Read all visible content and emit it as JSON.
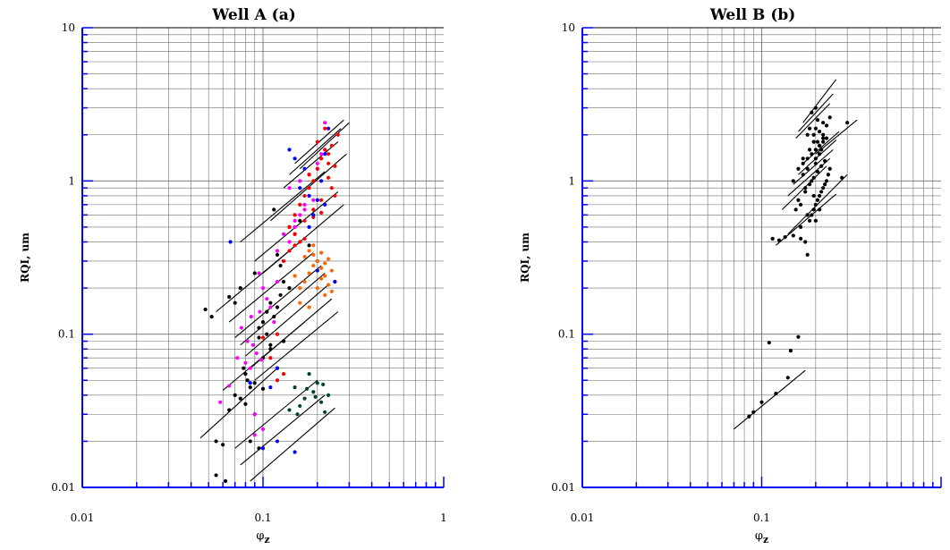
{
  "chart_data": [
    {
      "type": "scatter",
      "title": "Well A (a)",
      "xlabel": "φz",
      "ylabel": "RQI, um",
      "x_scale": "log",
      "y_scale": "log",
      "xlim": [
        0.01,
        1
      ],
      "ylim": [
        0.01,
        10
      ],
      "x_tick_labels": [
        "0.01",
        "0.1",
        "1"
      ],
      "y_tick_labels": [
        "0.01",
        "0.1",
        "1",
        "10"
      ],
      "grid": true,
      "colors": {
        "axis": "#0000ff",
        "grid": "#6e6e6e",
        "lines": "#000000"
      },
      "series": [
        {
          "color": "#000000",
          "x": [
            0.048,
            0.052,
            0.055,
            0.06,
            0.065,
            0.07,
            0.075,
            0.078,
            0.08,
            0.082,
            0.085,
            0.09,
            0.095,
            0.1,
            0.105,
            0.11,
            0.115,
            0.12,
            0.125,
            0.13,
            0.07,
            0.08,
            0.09,
            0.1,
            0.11,
            0.12,
            0.13,
            0.085,
            0.095,
            0.105,
            0.065,
            0.075,
            0.09,
            0.1,
            0.12,
            0.14,
            0.15,
            0.16,
            0.18,
            0.2,
            0.055,
            0.062,
            0.095,
            0.11,
            0.13,
            0.14,
            0.115,
            0.125
          ],
          "y": [
            0.145,
            0.13,
            0.02,
            0.019,
            0.175,
            0.16,
            0.2,
            0.06,
            0.055,
            0.05,
            0.045,
            0.25,
            0.11,
            0.12,
            0.14,
            0.16,
            0.13,
            0.15,
            0.18,
            0.22,
            0.04,
            0.035,
            0.03,
            0.07,
            0.08,
            0.06,
            0.09,
            0.02,
            0.018,
            0.1,
            0.032,
            0.038,
            0.048,
            0.044,
            0.33,
            0.5,
            0.45,
            0.55,
            0.38,
            0.3,
            0.012,
            0.011,
            0.095,
            0.085,
            0.09,
            0.2,
            0.65,
            0.28
          ]
        },
        {
          "color": "#ff00ff",
          "x": [
            0.058,
            0.065,
            0.072,
            0.08,
            0.085,
            0.09,
            0.095,
            0.1,
            0.105,
            0.11,
            0.115,
            0.12,
            0.13,
            0.14,
            0.15,
            0.16,
            0.17,
            0.18,
            0.2,
            0.22,
            0.082,
            0.088,
            0.092,
            0.098,
            0.076,
            0.086,
            0.096,
            0.14,
            0.16,
            0.18,
            0.2,
            0.09,
            0.1,
            0.12,
            0.13,
            0.15,
            0.17,
            0.19,
            0.21
          ],
          "y": [
            0.036,
            0.046,
            0.07,
            0.065,
            0.06,
            0.03,
            0.25,
            0.2,
            0.17,
            0.15,
            0.12,
            0.22,
            0.3,
            0.4,
            0.5,
            0.6,
            0.7,
            0.8,
            1.2,
            2.4,
            0.09,
            0.085,
            0.075,
            0.068,
            0.11,
            0.13,
            0.14,
            0.9,
            1.0,
            1.1,
            1.3,
            0.022,
            0.024,
            0.35,
            0.45,
            0.55,
            0.65,
            0.75,
            1.5
          ]
        },
        {
          "color": "#ff0000",
          "x": [
            0.1,
            0.11,
            0.12,
            0.13,
            0.14,
            0.15,
            0.16,
            0.17,
            0.18,
            0.19,
            0.2,
            0.21,
            0.22,
            0.23,
            0.24,
            0.25,
            0.26,
            0.15,
            0.17,
            0.19,
            0.21,
            0.23,
            0.16,
            0.18,
            0.2,
            0.22,
            0.14,
            0.24,
            0.12,
            0.13,
            0.15,
            0.17,
            0.19,
            0.21,
            0.23,
            0.25
          ],
          "y": [
            0.095,
            0.07,
            0.1,
            0.3,
            0.5,
            0.6,
            0.7,
            0.8,
            0.9,
            1.0,
            1.2,
            1.4,
            1.6,
            1.5,
            1.7,
            0.8,
            2.0,
            0.45,
            0.55,
            0.65,
            0.75,
            1.3,
            0.4,
            1.1,
            1.8,
            2.2,
            0.35,
            0.9,
            0.05,
            0.055,
            0.38,
            0.42,
            0.58,
            0.62,
            1.05,
            1.25
          ]
        },
        {
          "color": "#ff6600",
          "x": [
            0.16,
            0.17,
            0.18,
            0.19,
            0.2,
            0.21,
            0.22,
            0.23,
            0.24,
            0.17,
            0.18,
            0.19,
            0.2,
            0.21,
            0.22,
            0.16,
            0.18,
            0.2,
            0.22,
            0.24,
            0.19,
            0.21,
            0.23,
            0.15,
            0.25
          ],
          "y": [
            0.2,
            0.22,
            0.25,
            0.28,
            0.3,
            0.27,
            0.24,
            0.21,
            0.19,
            0.32,
            0.35,
            0.33,
            0.26,
            0.23,
            0.18,
            0.16,
            0.15,
            0.2,
            0.29,
            0.26,
            0.38,
            0.34,
            0.31,
            0.24,
            0.22
          ]
        },
        {
          "color": "#0000ff",
          "x": [
            0.066,
            0.085,
            0.1,
            0.11,
            0.12,
            0.14,
            0.15,
            0.16,
            0.17,
            0.18,
            0.19,
            0.2,
            0.21,
            0.22,
            0.23,
            0.12,
            0.15,
            0.22,
            0.25,
            0.18,
            0.2
          ],
          "y": [
            0.4,
            0.048,
            0.018,
            0.045,
            0.06,
            1.6,
            1.4,
            0.9,
            1.2,
            0.8,
            0.6,
            0.75,
            1.0,
            1.5,
            2.2,
            0.02,
            0.017,
            0.7,
            0.22,
            0.5,
            0.26
          ]
        },
        {
          "color": "#004433",
          "x": [
            0.14,
            0.15,
            0.16,
            0.17,
            0.18,
            0.19,
            0.2,
            0.21,
            0.22,
            0.23,
            0.155,
            0.175,
            0.195,
            0.215
          ],
          "y": [
            0.032,
            0.045,
            0.034,
            0.038,
            0.055,
            0.042,
            0.048,
            0.036,
            0.031,
            0.04,
            0.03,
            0.044,
            0.039,
            0.047
          ]
        }
      ],
      "trend_lines": [
        {
          "x": [
            0.045,
            0.12
          ],
          "y": [
            0.021,
            0.06
          ]
        },
        {
          "x": [
            0.07,
            0.2
          ],
          "y": [
            0.018,
            0.05
          ]
        },
        {
          "x": [
            0.075,
            0.22
          ],
          "y": [
            0.014,
            0.04
          ]
        },
        {
          "x": [
            0.085,
            0.25
          ],
          "y": [
            0.011,
            0.033
          ]
        },
        {
          "x": [
            0.06,
            0.17
          ],
          "y": [
            0.043,
            0.12
          ]
        },
        {
          "x": [
            0.055,
            0.16
          ],
          "y": [
            0.14,
            0.4
          ]
        },
        {
          "x": [
            0.065,
            0.19
          ],
          "y": [
            0.12,
            0.34
          ]
        },
        {
          "x": [
            0.07,
            0.21
          ],
          "y": [
            0.095,
            0.28
          ]
        },
        {
          "x": [
            0.075,
            0.22
          ],
          "y": [
            0.085,
            0.25
          ]
        },
        {
          "x": [
            0.08,
            0.23
          ],
          "y": [
            0.072,
            0.21
          ]
        },
        {
          "x": [
            0.085,
            0.24
          ],
          "y": [
            0.06,
            0.17
          ]
        },
        {
          "x": [
            0.09,
            0.26
          ],
          "y": [
            0.05,
            0.14
          ]
        },
        {
          "x": [
            0.075,
            0.22
          ],
          "y": [
            0.4,
            1.15
          ]
        },
        {
          "x": [
            0.09,
            0.26
          ],
          "y": [
            0.3,
            0.85
          ]
        },
        {
          "x": [
            0.1,
            0.28
          ],
          "y": [
            0.25,
            0.7
          ]
        },
        {
          "x": [
            0.11,
            0.29
          ],
          "y": [
            0.55,
            1.5
          ]
        },
        {
          "x": [
            0.13,
            0.26
          ],
          "y": [
            0.9,
            1.8
          ]
        },
        {
          "x": [
            0.14,
            0.27
          ],
          "y": [
            1.1,
            2.2
          ]
        },
        {
          "x": [
            0.15,
            0.28
          ],
          "y": [
            1.3,
            2.5
          ]
        },
        {
          "x": [
            0.16,
            0.3
          ],
          "y": [
            1.2,
            2.4
          ]
        }
      ]
    },
    {
      "type": "scatter",
      "title": "Well B (b)",
      "xlabel": "φz",
      "ylabel": "RQI, um",
      "x_scale": "log",
      "y_scale": "log",
      "xlim": [
        0.01,
        1
      ],
      "ylim": [
        0.01,
        10
      ],
      "x_tick_labels": [
        "0.01",
        "0.1"
      ],
      "y_tick_labels": [
        "0.01",
        "0.1",
        "1",
        "10"
      ],
      "grid": true,
      "colors": {
        "axis": "#0000ff",
        "grid": "#6e6e6e",
        "lines": "#000000"
      },
      "series": [
        {
          "color": "#000000",
          "x": [
            0.085,
            0.09,
            0.1,
            0.11,
            0.12,
            0.14,
            0.145,
            0.16,
            0.115,
            0.125,
            0.135,
            0.15,
            0.165,
            0.175,
            0.18,
            0.185,
            0.19,
            0.195,
            0.2,
            0.205,
            0.21,
            0.215,
            0.22,
            0.225,
            0.23,
            0.235,
            0.24,
            0.17,
            0.18,
            0.19,
            0.2,
            0.21,
            0.22,
            0.23,
            0.16,
            0.175,
            0.185,
            0.195,
            0.205,
            0.215,
            0.225,
            0.155,
            0.165,
            0.18,
            0.2,
            0.22,
            0.24,
            0.19,
            0.2,
            0.21,
            0.22,
            0.23,
            0.17,
            0.18,
            0.185,
            0.195,
            0.205,
            0.175,
            0.19,
            0.2,
            0.21,
            0.165,
            0.18,
            0.195,
            0.2,
            0.21,
            0.22,
            0.28,
            0.3,
            0.185,
            0.195,
            0.205,
            0.215,
            0.15,
            0.16,
            0.17,
            0.2,
            0.21
          ],
          "y": [
            0.029,
            0.031,
            0.036,
            0.088,
            0.041,
            0.052,
            0.078,
            0.096,
            0.42,
            0.41,
            0.43,
            0.44,
            0.42,
            0.4,
            0.33,
            0.55,
            0.6,
            0.65,
            0.7,
            0.75,
            0.8,
            0.85,
            0.9,
            0.95,
            1.0,
            1.1,
            1.2,
            1.3,
            1.4,
            1.5,
            1.6,
            1.7,
            1.8,
            1.9,
            0.75,
            0.85,
            0.95,
            1.05,
            1.15,
            1.25,
            1.35,
            0.65,
            0.7,
            2.0,
            2.2,
            2.4,
            2.6,
            2.8,
            3.0,
            2.1,
            1.9,
            2.3,
            1.1,
            1.2,
            1.6,
            1.8,
            2.5,
            0.9,
            1.0,
            1.4,
            1.7,
            0.5,
            0.6,
            0.8,
            1.3,
            1.5,
            2.0,
            1.05,
            2.4,
            2.2,
            2.0,
            1.8,
            1.6,
            1.0,
            1.2,
            1.4,
            0.55,
            0.65
          ]
        }
      ],
      "trend_lines": [
        {
          "x": [
            0.07,
            0.175
          ],
          "y": [
            0.024,
            0.058
          ]
        },
        {
          "x": [
            0.12,
            0.26
          ],
          "y": [
            0.38,
            0.82
          ]
        },
        {
          "x": [
            0.14,
            0.3
          ],
          "y": [
            0.45,
            1.1
          ]
        },
        {
          "x": [
            0.13,
            0.23
          ],
          "y": [
            0.65,
            1.25
          ]
        },
        {
          "x": [
            0.14,
            0.24
          ],
          "y": [
            0.8,
            1.4
          ]
        },
        {
          "x": [
            0.15,
            0.25
          ],
          "y": [
            0.95,
            1.6
          ]
        },
        {
          "x": [
            0.16,
            0.26
          ],
          "y": [
            1.1,
            1.85
          ]
        },
        {
          "x": [
            0.17,
            0.27
          ],
          "y": [
            1.3,
            2.1
          ]
        },
        {
          "x": [
            0.155,
            0.24
          ],
          "y": [
            1.9,
            3.2
          ]
        },
        {
          "x": [
            0.16,
            0.25
          ],
          "y": [
            2.1,
            3.7
          ]
        },
        {
          "x": [
            0.17,
            0.26
          ],
          "y": [
            2.4,
            4.6
          ]
        },
        {
          "x": [
            0.2,
            0.34
          ],
          "y": [
            1.5,
            2.5
          ]
        }
      ]
    }
  ]
}
